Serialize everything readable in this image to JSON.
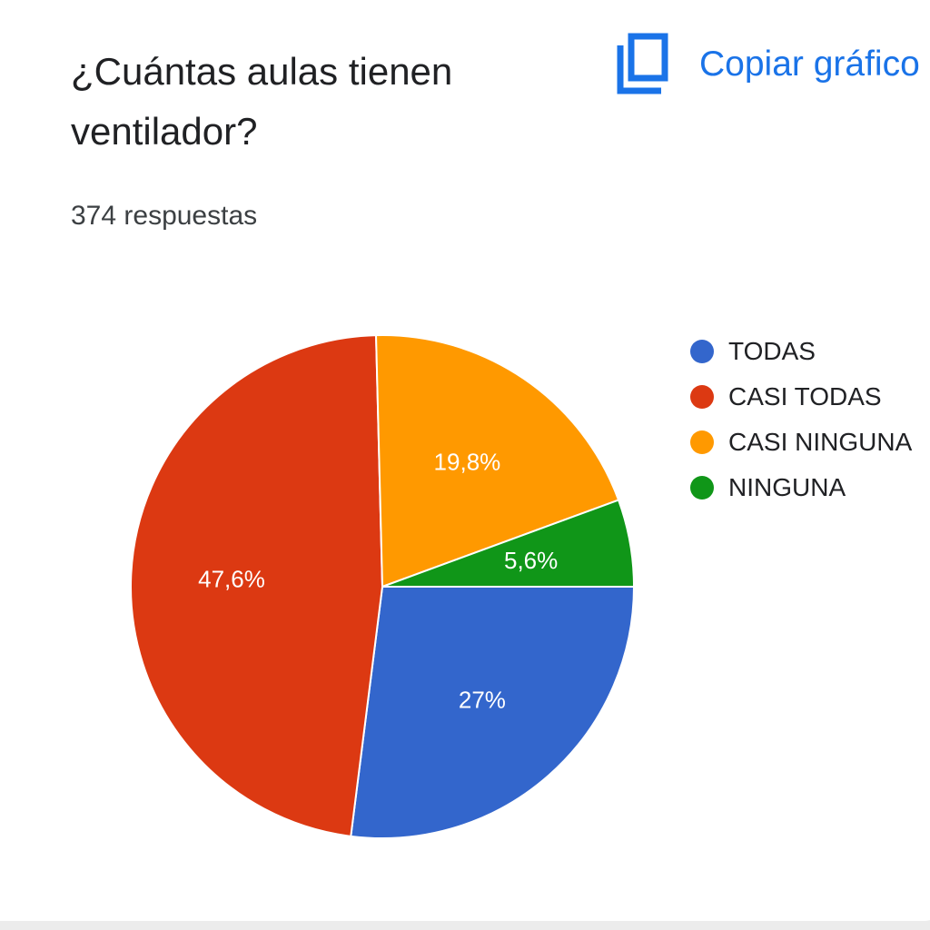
{
  "card": {
    "question": "¿Cuántas aulas tienen ventilador?",
    "response_count": "374 respuestas",
    "copy_button_label": "Copiar gráfico",
    "copy_icon": "content-copy-icon",
    "accent_color": "#1a73e8"
  },
  "chart_data": {
    "type": "pie",
    "title": "¿Cuántas aulas tienen ventilador?",
    "legend_position": "right",
    "slices": [
      {
        "label": "TODAS",
        "value": 27.0,
        "display": "27%",
        "color": "#3366cc"
      },
      {
        "label": "CASI TODAS",
        "value": 47.6,
        "display": "47,6%",
        "color": "#dc3912"
      },
      {
        "label": "CASI NINGUNA",
        "value": 19.8,
        "display": "19,8%",
        "color": "#ff9900"
      },
      {
        "label": "NINGUNA",
        "value": 5.6,
        "display": "5,6%",
        "color": "#109618"
      }
    ]
  }
}
